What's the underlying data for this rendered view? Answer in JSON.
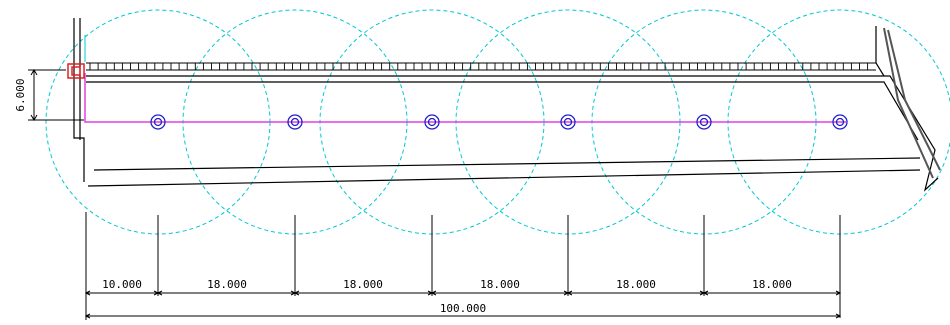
{
  "drawing": {
    "vertical_dimension": "6.000",
    "segment_dimensions": [
      "10.000",
      "18.000",
      "18.000",
      "18.000",
      "18.000",
      "18.000"
    ],
    "total_dimension": "100.000",
    "colors": {
      "circle": "#00c8d2",
      "line": "#e040e0",
      "marker": "#2020c8",
      "start": "#e02020",
      "outline": "#000000"
    },
    "circle_count": 6
  }
}
